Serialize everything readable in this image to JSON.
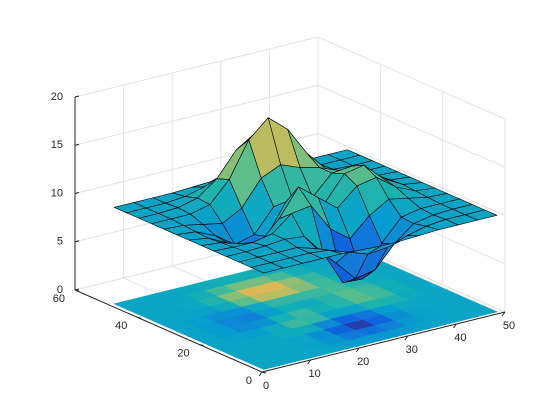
{
  "chart_data": {
    "type": "surface",
    "x": [
      1,
      5,
      9,
      13,
      17,
      21,
      25,
      29,
      33,
      37,
      41,
      45,
      49
    ],
    "y": [
      1,
      5,
      9,
      13,
      17,
      21,
      25,
      29,
      33,
      37,
      41,
      45,
      49
    ],
    "z": [
      [
        10,
        10,
        10,
        10,
        10,
        9.9,
        9.8,
        9.8,
        9.9,
        10,
        10,
        10,
        10
      ],
      [
        10,
        10,
        10,
        10,
        9.8,
        9.1,
        8.4,
        8.6,
        9.3,
        9.8,
        10,
        10,
        10
      ],
      [
        10,
        10,
        10,
        10,
        9.4,
        7.4,
        5.3,
        5.7,
        7.9,
        9.5,
        9.9,
        10,
        10
      ],
      [
        10,
        10,
        10.1,
        10.3,
        10.1,
        7.8,
        4.3,
        4.2,
        7.4,
        9.6,
        10,
        10,
        10
      ],
      [
        10,
        9.9,
        9.9,
        10.3,
        11.9,
        12.2,
        9.3,
        7.8,
        9.7,
        10.9,
        10.5,
        10.1,
        10
      ],
      [
        10,
        9.8,
        9.2,
        8.8,
        10.8,
        13.6,
        12,
        10.4,
        12.2,
        12.6,
        11.1,
        10.2,
        10
      ],
      [
        10,
        9.7,
        8.7,
        7.2,
        8.4,
        11.5,
        11,
        10.4,
        12.9,
        13.3,
        11.4,
        10.3,
        10
      ],
      [
        10,
        9.8,
        8.9,
        7.5,
        8,
        10.4,
        10.5,
        10.4,
        12.4,
        12.6,
        11.1,
        10.2,
        10
      ],
      [
        10,
        9.9,
        9.5,
        9.1,
        10.2,
        12.8,
        13.7,
        12.9,
        12.4,
        11.6,
        10.6,
        10.1,
        10
      ],
      [
        10,
        10,
        10,
        10.5,
        12.6,
        16.2,
        18,
        16.3,
        13.3,
        11.2,
        10.3,
        10,
        10
      ],
      [
        10,
        10,
        10.1,
        10.6,
        12.1,
        14.6,
        15.9,
        14.6,
        12.2,
        10.7,
        10.1,
        10,
        10
      ],
      [
        10,
        10,
        10,
        10.2,
        10.7,
        11.5,
        11.9,
        11.5,
        10.7,
        10.2,
        10,
        10,
        10
      ],
      [
        10,
        10,
        10,
        10,
        10.1,
        10.2,
        10.3,
        10.2,
        10.1,
        10,
        10,
        10,
        10
      ]
    ],
    "xlim": [
      0,
      50
    ],
    "ylim": [
      0,
      60
    ],
    "zlim": [
      0,
      20
    ],
    "xticks": [
      0,
      10,
      20,
      30,
      40,
      50
    ],
    "yticks": [
      0,
      20,
      40,
      60
    ],
    "zticks": [
      0,
      5,
      10,
      15,
      20
    ],
    "grid": true,
    "colormap": "parula",
    "contour_floor": true
  }
}
